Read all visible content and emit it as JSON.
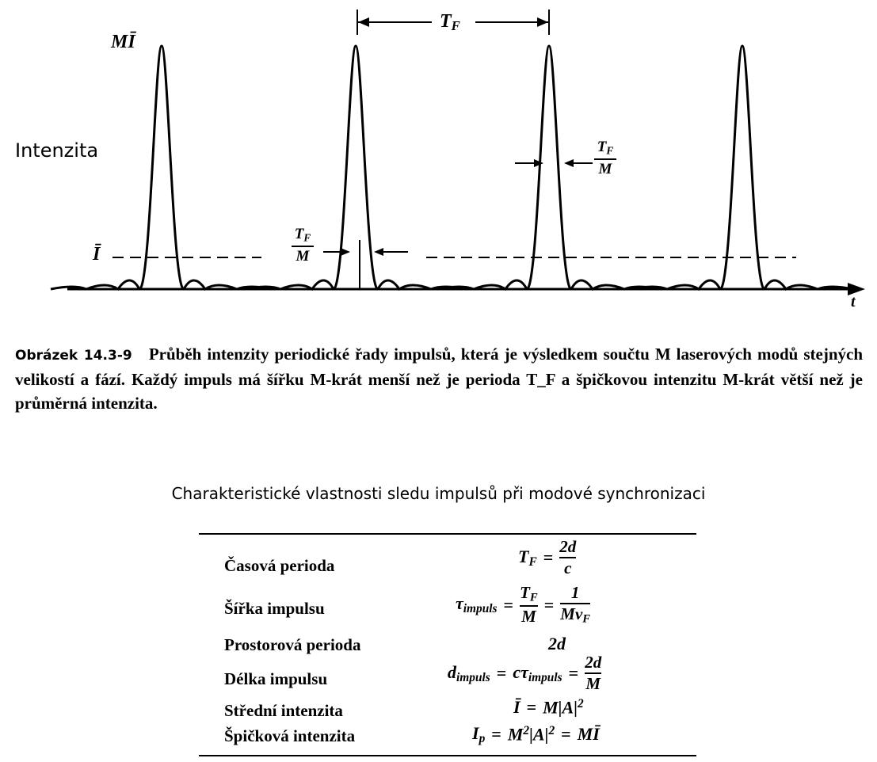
{
  "figure": {
    "y_label": "Intenzita",
    "x_label": "t",
    "peak_label": "MĪ",
    "mean_label": "Ī",
    "period_label": "T",
    "period_sub": "F",
    "width_num": "T",
    "width_num_sub": "F",
    "width_den": "M"
  },
  "caption": {
    "label": "Obrázek 14.3-9",
    "text": "Průběh intenzity periodické řady impulsů, která je výsledkem součtu M laserových modů stejných velikostí a fází. Každý impuls má šířku M-krát menší než je perioda T_F a špičkovou intenzitu M-krát větší než je průměrná intenzita."
  },
  "table": {
    "title": "Charakteristické vlastnosti sledu impulsů při modové synchronizaci",
    "rows": [
      {
        "label": "Časová perioda",
        "formula": "T_F = 2d / c"
      },
      {
        "label": "Šířka impulsu",
        "formula": "τ_impuls = T_F / M = 1 / (M ν_F)"
      },
      {
        "label": "Prostorová perioda",
        "formula": "2d"
      },
      {
        "label": "Délka impulsu",
        "formula": "d_impuls = c τ_impuls = 2d / M"
      },
      {
        "label": "Střední intenzita",
        "formula": "Ī = M|A|²"
      },
      {
        "label": "Špičková intenzita",
        "formula": "I_p = M²|A|² = MĪ"
      }
    ]
  }
}
